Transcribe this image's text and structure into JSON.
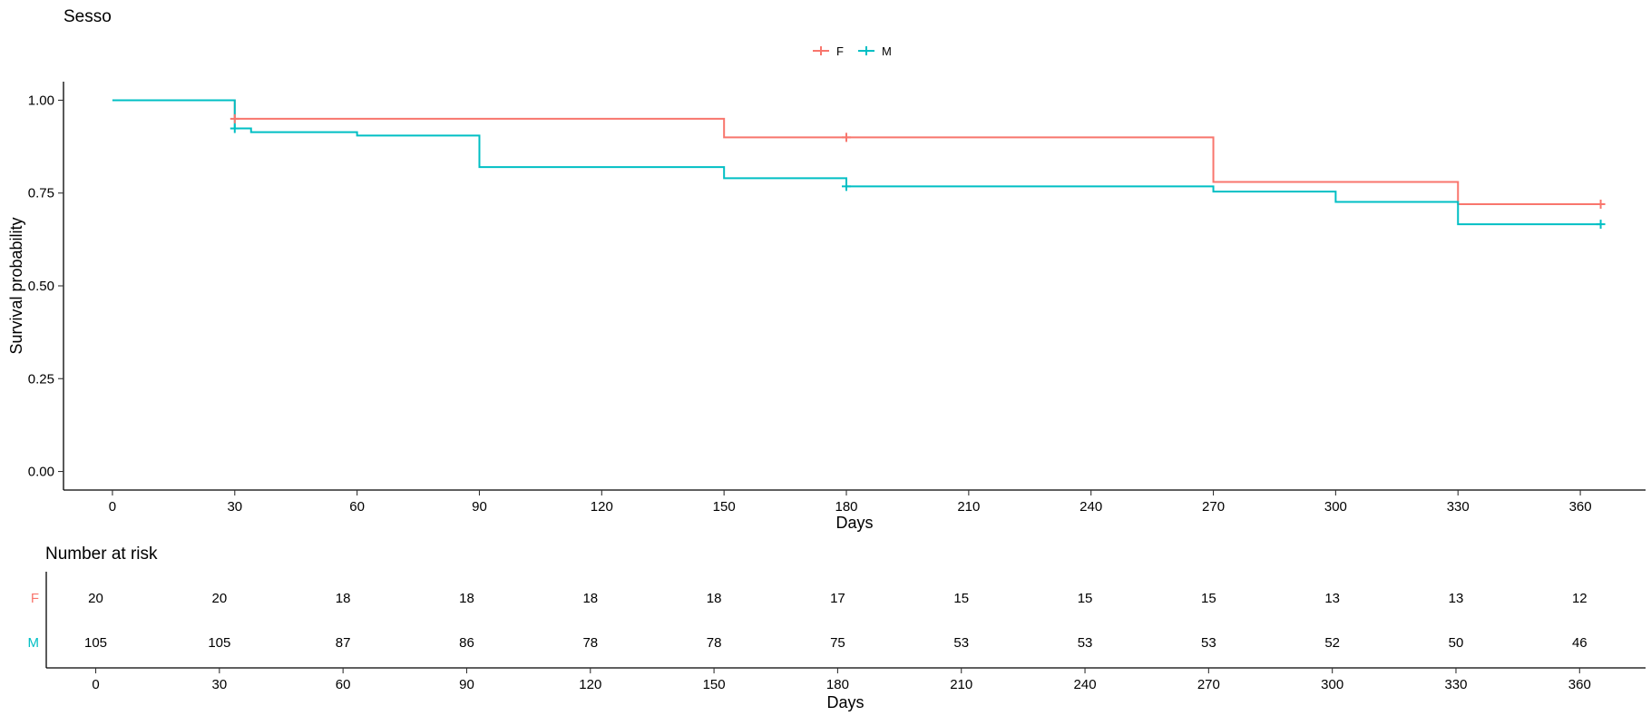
{
  "chart_data": [
    {
      "type": "line",
      "subtype": "kaplan-meier-step",
      "title": "Sesso",
      "xlabel": "Days",
      "ylabel": "Survival probability",
      "xlim": [
        -12,
        376
      ],
      "ylim": [
        -0.05,
        1.05
      ],
      "x_ticks": [
        0,
        30,
        60,
        90,
        120,
        150,
        180,
        210,
        240,
        270,
        300,
        330,
        360
      ],
      "y_ticks": [
        0.0,
        0.25,
        0.5,
        0.75,
        1.0
      ],
      "y_tick_labels": [
        "0.00",
        "0.25",
        "0.50",
        "0.75",
        "1.00"
      ],
      "grid": false,
      "legend_position": "top",
      "series": [
        {
          "name": "F",
          "color": "#F8766D",
          "steps": [
            [
              0,
              1.0
            ],
            [
              30,
              0.95
            ],
            [
              150,
              0.9
            ],
            [
              270,
              0.78
            ],
            [
              330,
              0.72
            ]
          ],
          "end_x": 365,
          "censor_points": [
            [
              30,
              0.95
            ],
            [
              180,
              0.9
            ],
            [
              365,
              0.72
            ]
          ]
        },
        {
          "name": "M",
          "color": "#00BFC4",
          "steps": [
            [
              0,
              1.0
            ],
            [
              30,
              0.924
            ],
            [
              34,
              0.914
            ],
            [
              60,
              0.905
            ],
            [
              90,
              0.82
            ],
            [
              150,
              0.79
            ],
            [
              180,
              0.768
            ],
            [
              270,
              0.754
            ],
            [
              300,
              0.726
            ],
            [
              330,
              0.666
            ]
          ],
          "end_x": 365,
          "censor_points": [
            [
              30,
              0.924
            ],
            [
              180,
              0.768
            ],
            [
              365,
              0.666
            ]
          ]
        }
      ]
    },
    {
      "type": "table",
      "title": "Number at risk",
      "xlabel": "Days",
      "xlim": [
        -12,
        376
      ],
      "x_ticks": [
        0,
        30,
        60,
        90,
        120,
        150,
        180,
        210,
        240,
        270,
        300,
        330,
        360
      ],
      "rows": [
        {
          "name": "F",
          "color": "#F8766D",
          "values": [
            20,
            20,
            18,
            18,
            18,
            18,
            17,
            15,
            15,
            15,
            13,
            13,
            12
          ]
        },
        {
          "name": "M",
          "color": "#00BFC4",
          "values": [
            105,
            105,
            87,
            86,
            78,
            78,
            75,
            53,
            53,
            53,
            52,
            50,
            46
          ]
        }
      ]
    }
  ]
}
